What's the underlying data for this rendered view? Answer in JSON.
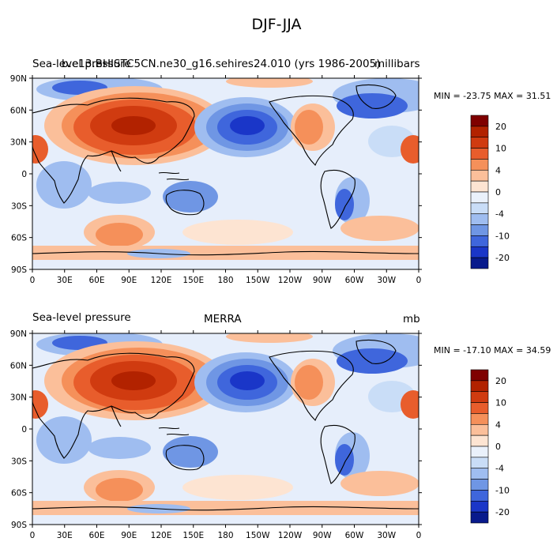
{
  "title": "DJF-JJA",
  "panels": [
    {
      "left_title_overlap_a": "Sea-level pressure",
      "left_title_overlap_b": "b.e13.BHISTC5CN.ne30_g16.sehires24.010 (yrs 1986-2005)",
      "units": "millibars",
      "min_max": "MIN = -23.75 MAX =  31.51"
    },
    {
      "left_title": "Sea-level pressure",
      "center_title": "MERRA",
      "units": "mb",
      "min_max": "MIN = -17.10 MAX =  34.59"
    }
  ],
  "axes": {
    "lon_ticks": [
      "0",
      "30E",
      "60E",
      "90E",
      "120E",
      "150E",
      "180",
      "150W",
      "120W",
      "90W",
      "60W",
      "30W",
      "0"
    ],
    "lat_ticks": [
      "90N",
      "60N",
      "30N",
      "0",
      "30S",
      "60S",
      "90S"
    ]
  },
  "colorbar": {
    "labels": [
      "20",
      "10",
      "4",
      "0",
      "-4",
      "-10",
      "-20"
    ],
    "colors": [
      "#7f0000",
      "#b22200",
      "#d03b10",
      "#e85d2c",
      "#f5905a",
      "#fbbf9a",
      "#fde4d2",
      "#eaf1fb",
      "#c9ddf7",
      "#9fbdf0",
      "#6f96e4",
      "#3f66dc",
      "#1a36c8",
      "#081a8c"
    ]
  },
  "map_colors": {
    "ocean_neutral": "#e8f0fb",
    "coast": "#000000"
  }
}
